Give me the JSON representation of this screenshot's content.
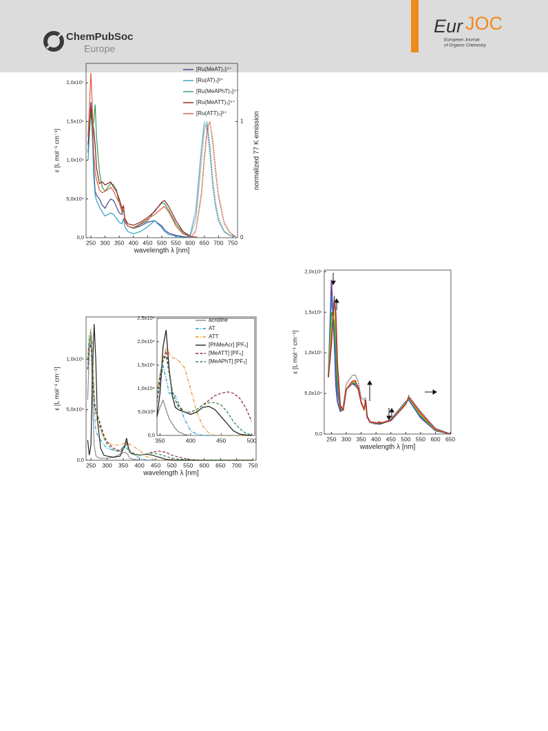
{
  "header": {
    "publisher": "ChemPubSoc",
    "publisher_sub": "Europe",
    "journal_a": "Eur",
    "journal_b": "JOC",
    "journal_line1": "European Journal",
    "journal_line2": "of Organic Chemistry"
  },
  "chart_data": [
    {
      "type": "line",
      "xlabel": "wavelength λ [nm]",
      "ylabel": "ε [L mol⁻¹ cm⁻¹]",
      "y2label": "normalized 77 K emission",
      "legend": "upper right",
      "xlim": [
        233,
        767
      ],
      "xticks": [
        250,
        300,
        350,
        400,
        450,
        500,
        550,
        600,
        650,
        700,
        750
      ],
      "ylim": [
        0,
        225000
      ],
      "yticks": [
        {
          "value": 0,
          "label": "0,0"
        },
        {
          "value": 50000,
          "label": "5,0x10⁴"
        },
        {
          "value": 100000,
          "label": "1,0x10⁵"
        },
        {
          "value": 150000,
          "label": "1,5x10⁵"
        },
        {
          "value": 200000,
          "label": "2,0x10⁵"
        }
      ],
      "y2lim": [
        0,
        1.5
      ],
      "y2ticks": [
        0,
        1
      ],
      "emission_dash": "dot",
      "x": [
        240,
        250,
        255,
        260,
        265,
        270,
        280,
        290,
        300,
        310,
        320,
        330,
        340,
        350,
        360,
        365,
        370,
        380,
        400,
        425,
        450,
        475,
        500,
        510,
        525,
        550,
        575,
        600,
        625
      ],
      "emission_x": [
        580,
        600,
        620,
        640,
        650,
        660,
        670,
        680,
        690,
        700,
        720,
        740,
        760
      ],
      "series": [
        {
          "name": "[Ru(MeAT)₃]⁴⁺",
          "color": "#4b3f8f",
          "values": [
            110000,
            175000,
            150000,
            90000,
            60000,
            55000,
            50000,
            42000,
            38000,
            45000,
            50000,
            48000,
            40000,
            32000,
            30000,
            42000,
            22000,
            15000,
            12000,
            15000,
            20000,
            22000,
            15000,
            10000,
            6000,
            3000,
            1500,
            500,
            0
          ],
          "emission": [
            0,
            0.02,
            0.2,
            0.75,
            0.97,
            0.97,
            0.75,
            0.45,
            0.27,
            0.15,
            0.05,
            0.02,
            0.01
          ]
        },
        {
          "name": "[Ru(AT)₃]²⁺",
          "color": "#2a9fc0",
          "values": [
            100000,
            170000,
            130000,
            80000,
            55000,
            48000,
            40000,
            33000,
            28000,
            30000,
            32000,
            30000,
            25000,
            20000,
            18000,
            25000,
            14000,
            8000,
            5000,
            8000,
            14000,
            22000,
            13000,
            8000,
            4000,
            2000,
            800,
            300,
            0
          ],
          "emission": [
            0,
            0.03,
            0.25,
            0.8,
            1,
            0.93,
            0.7,
            0.42,
            0.25,
            0.14,
            0.05,
            0.02,
            0.01
          ]
        },
        {
          "name": "[Ru(MeAPhT)₃]⁴⁺",
          "color": "#2e9a5a",
          "values": [
            120000,
            165000,
            140000,
            150000,
            172000,
            130000,
            85000,
            65000,
            60000,
            65000,
            70000,
            68000,
            62000,
            45000,
            33000,
            35000,
            22000,
            15000,
            12000,
            17000,
            22000,
            35000,
            45000,
            44000,
            35000,
            18000,
            6000,
            2000,
            500
          ],
          "emission": [
            0,
            0.01,
            0.15,
            0.65,
            0.92,
            1,
            0.8,
            0.5,
            0.3,
            0.17,
            0.06,
            0.02,
            0.01
          ]
        },
        {
          "name": "[Ru(MeATT)₃]⁴⁺",
          "color": "#8b1a1a",
          "values": [
            120000,
            170000,
            150000,
            140000,
            120000,
            90000,
            70000,
            72000,
            68000,
            70000,
            72000,
            65000,
            60000,
            50000,
            38000,
            40000,
            25000,
            18000,
            16000,
            20000,
            26000,
            34000,
            46000,
            48000,
            40000,
            22000,
            8000,
            2000,
            500
          ],
          "emission": [
            0,
            0,
            0.06,
            0.4,
            0.7,
            0.95,
            1,
            0.8,
            0.55,
            0.35,
            0.12,
            0.04,
            0.01
          ]
        },
        {
          "name": "[Ru(ATT)₃]²⁺",
          "color": "#e05a3a",
          "values": [
            130000,
            213000,
            170000,
            110000,
            85000,
            75000,
            62000,
            58000,
            60000,
            62000,
            65000,
            60000,
            52000,
            45000,
            35000,
            38000,
            20000,
            15000,
            13000,
            18000,
            24000,
            30000,
            38000,
            40000,
            33000,
            15000,
            5000,
            1500,
            300
          ],
          "emission": [
            0,
            0,
            0.05,
            0.35,
            0.65,
            0.9,
            1,
            0.85,
            0.6,
            0.38,
            0.14,
            0.05,
            0.01
          ]
        }
      ]
    },
    {
      "type": "line",
      "xlabel": "wavelength λ [nm]",
      "ylabel": "ε [L mol⁻¹ cm⁻¹]",
      "legend": "upper right",
      "xlim": [
        235,
        760
      ],
      "xticks": [
        250,
        300,
        350,
        400,
        450,
        500,
        550,
        600,
        650,
        700,
        750
      ],
      "ylim": [
        0,
        142000
      ],
      "yticks": [
        {
          "value": 0,
          "label": "0,0"
        },
        {
          "value": 50000,
          "label": "5,0x10⁴"
        },
        {
          "value": 100000,
          "label": "1,0x10⁵"
        }
      ],
      "x": [
        240,
        245,
        250,
        255,
        260,
        265,
        270,
        280,
        290,
        300,
        320,
        340,
        355,
        360,
        365,
        370,
        380,
        400,
        420,
        440,
        460,
        480,
        500,
        550,
        600,
        650,
        700,
        750
      ],
      "series": [
        {
          "name": "acridine",
          "color": "#8c8c8c",
          "dash": "solid",
          "values": [
            60000,
            110000,
            125000,
            60000,
            15000,
            5000,
            3000,
            2000,
            2000,
            2000,
            3000,
            6000,
            8000,
            7000,
            5000,
            2000,
            1000,
            300,
            0,
            0,
            0,
            0,
            0,
            0,
            0,
            0,
            0,
            0
          ]
        },
        {
          "name": "AT",
          "color": "#2a9fd6",
          "dash": "dashdot",
          "values": [
            90000,
            120000,
            128000,
            100000,
            50000,
            30000,
            25000,
            20000,
            15000,
            12000,
            10000,
            10000,
            15000,
            12000,
            10000,
            7000,
            6000,
            2000,
            500,
            0,
            0,
            0,
            0,
            0,
            0,
            0,
            0,
            0
          ]
        },
        {
          "name": "ATT",
          "color": "#e8962a",
          "dash": "dashdot",
          "values": [
            100000,
            125000,
            130000,
            115000,
            70000,
            45000,
            38000,
            30000,
            22000,
            18000,
            15000,
            15000,
            17000,
            17000,
            16000,
            16000,
            14000,
            10000,
            4000,
            1000,
            0,
            0,
            0,
            0,
            0,
            0,
            0,
            0
          ]
        },
        {
          "name": "[PhMeAcr] [PF₆]",
          "color": "#222222",
          "dash": "solid",
          "values": [
            20000,
            5000,
            15000,
            90000,
            135000,
            100000,
            40000,
            12000,
            5000,
            4000,
            3000,
            4000,
            15000,
            22000,
            14000,
            8000,
            6000,
            5000,
            6000,
            5000,
            3000,
            1000,
            200,
            0,
            0,
            0,
            0,
            0
          ]
        },
        {
          "name": "[MeATT] [PF₆]",
          "color": "#8b2a3a",
          "dash": "dash",
          "values": [
            90000,
            110000,
            115000,
            80000,
            55000,
            48000,
            45000,
            35000,
            25000,
            18000,
            12000,
            9000,
            15000,
            18000,
            13000,
            9000,
            7000,
            5000,
            6000,
            8000,
            9000,
            8000,
            5000,
            800,
            0,
            0,
            0,
            0
          ]
        },
        {
          "name": "[MeAPhT] [PF₆]",
          "color": "#2e8a4a",
          "dash": "dash",
          "values": [
            100000,
            120000,
            122000,
            90000,
            60000,
            50000,
            45000,
            32000,
            22000,
            16000,
            10000,
            8000,
            13000,
            16000,
            12000,
            8000,
            6000,
            5000,
            6000,
            7000,
            6000,
            4000,
            2000,
            300,
            0,
            0,
            0,
            0
          ]
        }
      ],
      "inset": {
        "xlim": [
          345,
          505
        ],
        "xticks": [
          350,
          400,
          450,
          500
        ],
        "ylim": [
          0,
          25000
        ],
        "yticks": [
          {
            "value": 0,
            "label": "0,0"
          },
          {
            "value": 5000,
            "label": "5,0x10³"
          },
          {
            "value": 10000,
            "label": "1,0x10⁴"
          },
          {
            "value": 15000,
            "label": "1,5x10⁴"
          },
          {
            "value": 20000,
            "label": "2,0x10⁴"
          },
          {
            "value": 25000,
            "label": "2,5x10⁴"
          }
        ],
        "x": [
          345,
          350,
          355,
          360,
          365,
          370,
          375,
          380,
          390,
          400,
          410,
          420,
          430,
          440,
          450,
          460,
          470,
          480,
          490,
          500
        ],
        "series": [
          {
            "values": [
              4000,
              6000,
              7500,
              5500,
              3500,
              2500,
              1500,
              800,
              200,
              0,
              0,
              0,
              0,
              0,
              0,
              0,
              0,
              0,
              0,
              0
            ]
          },
          {
            "values": [
              7500,
              10500,
              15000,
              12000,
              9000,
              9000,
              8500,
              7000,
              3500,
              1000,
              300,
              0,
              0,
              0,
              0,
              0,
              0,
              0,
              0,
              0
            ]
          },
          {
            "values": [
              9000,
              13000,
              16500,
              18500,
              17500,
              16500,
              16500,
              16000,
              14500,
              10000,
              5000,
              2000,
              500,
              0,
              0,
              0,
              0,
              0,
              0,
              0
            ]
          },
          {
            "values": [
              4000,
              9000,
              19000,
              22500,
              14000,
              8500,
              6000,
              5500,
              5000,
              4500,
              5000,
              6000,
              6200,
              5500,
              4000,
              2500,
              1000,
              300,
              100,
              0
            ]
          },
          {
            "values": [
              7000,
              12000,
              16000,
              18000,
              14000,
              9500,
              7500,
              6500,
              5000,
              5000,
              5500,
              6500,
              7500,
              8500,
              9000,
              9300,
              9000,
              8000,
              6000,
              3000
            ]
          },
          {
            "values": [
              9000,
              13000,
              16000,
              17000,
              13000,
              9500,
              7500,
              6000,
              5000,
              5000,
              5500,
              6500,
              7000,
              7000,
              6500,
              5000,
              3000,
              1500,
              500,
              100
            ]
          }
        ]
      }
    },
    {
      "type": "line",
      "xlabel": "wavelength λ [nm]",
      "ylabel": "ε [L mol⁻¹ cm⁻¹]",
      "xlim": [
        226,
        652
      ],
      "xticks": [
        250,
        300,
        350,
        400,
        450,
        500,
        550,
        600,
        650
      ],
      "ylim": [
        0,
        202000
      ],
      "yticks": [
        {
          "value": 0,
          "label": "0,0"
        },
        {
          "value": 50000,
          "label": "5,0x10⁴"
        },
        {
          "value": 100000,
          "label": "1,0x10⁵"
        },
        {
          "value": 150000,
          "label": "1,5x10⁵"
        },
        {
          "value": 200000,
          "label": "2,0x10⁵"
        }
      ],
      "x": [
        240,
        250,
        255,
        260,
        265,
        270,
        280,
        290,
        300,
        320,
        330,
        340,
        350,
        360,
        365,
        370,
        380,
        400,
        410,
        420,
        450,
        500,
        510,
        550,
        600,
        650
      ],
      "series": [
        {
          "color": "#6a3d9a",
          "dash": "solid",
          "values": [
            70000,
            190000,
            150000,
            110000,
            60000,
            40000,
            28000,
            30000,
            55000,
            62000,
            60000,
            55000,
            38000,
            30000,
            42000,
            22000,
            15000,
            14000,
            12000,
            13000,
            18000,
            40000,
            42000,
            20000,
            4000,
            0
          ]
        },
        {
          "color": "#2b7bd1",
          "dash": "solid",
          "values": [
            70000,
            170000,
            148000,
            124000,
            82000,
            52000,
            30000,
            30000,
            55000,
            63000,
            61500,
            56000,
            38500,
            30000,
            42000,
            22000,
            15000,
            14000,
            12500,
            13500,
            18000,
            39000,
            42500,
            21500,
            4500,
            0
          ]
        },
        {
          "color": "#2ca02c",
          "dash": "solid",
          "values": [
            70000,
            150000,
            145000,
            138000,
            105000,
            65000,
            31500,
            30000,
            55000,
            63500,
            63000,
            56500,
            39000,
            30000,
            42000,
            22000,
            15000,
            13500,
            13500,
            13500,
            17500,
            38500,
            43500,
            23000,
            5000,
            0
          ]
        },
        {
          "color": "#e8d020",
          "dash": "solid",
          "values": [
            70000,
            130000,
            142000,
            151000,
            128000,
            78000,
            33000,
            30000,
            55000,
            64000,
            64500,
            57000,
            39500,
            30000,
            42000,
            22000,
            15000,
            13000,
            14500,
            14000,
            17000,
            38000,
            44500,
            24500,
            5500,
            0
          ]
        },
        {
          "color": "#d62728",
          "dash": "solid",
          "values": [
            70000,
            110000,
            140000,
            165000,
            150000,
            90000,
            35000,
            30000,
            55000,
            65000,
            66000,
            58000,
            40000,
            30000,
            42000,
            22000,
            15000,
            13000,
            15000,
            14000,
            17000,
            37000,
            45000,
            26000,
            6000,
            0
          ]
        },
        {
          "color": "#444444",
          "dash": "dot",
          "values": [
            70000,
            120000,
            145000,
            170000,
            140000,
            80000,
            32000,
            35000,
            62000,
            72000,
            73000,
            65000,
            45000,
            42000,
            45000,
            20000,
            14000,
            12000,
            14000,
            13000,
            16000,
            36000,
            47000,
            28000,
            7000,
            0
          ]
        }
      ]
    }
  ]
}
